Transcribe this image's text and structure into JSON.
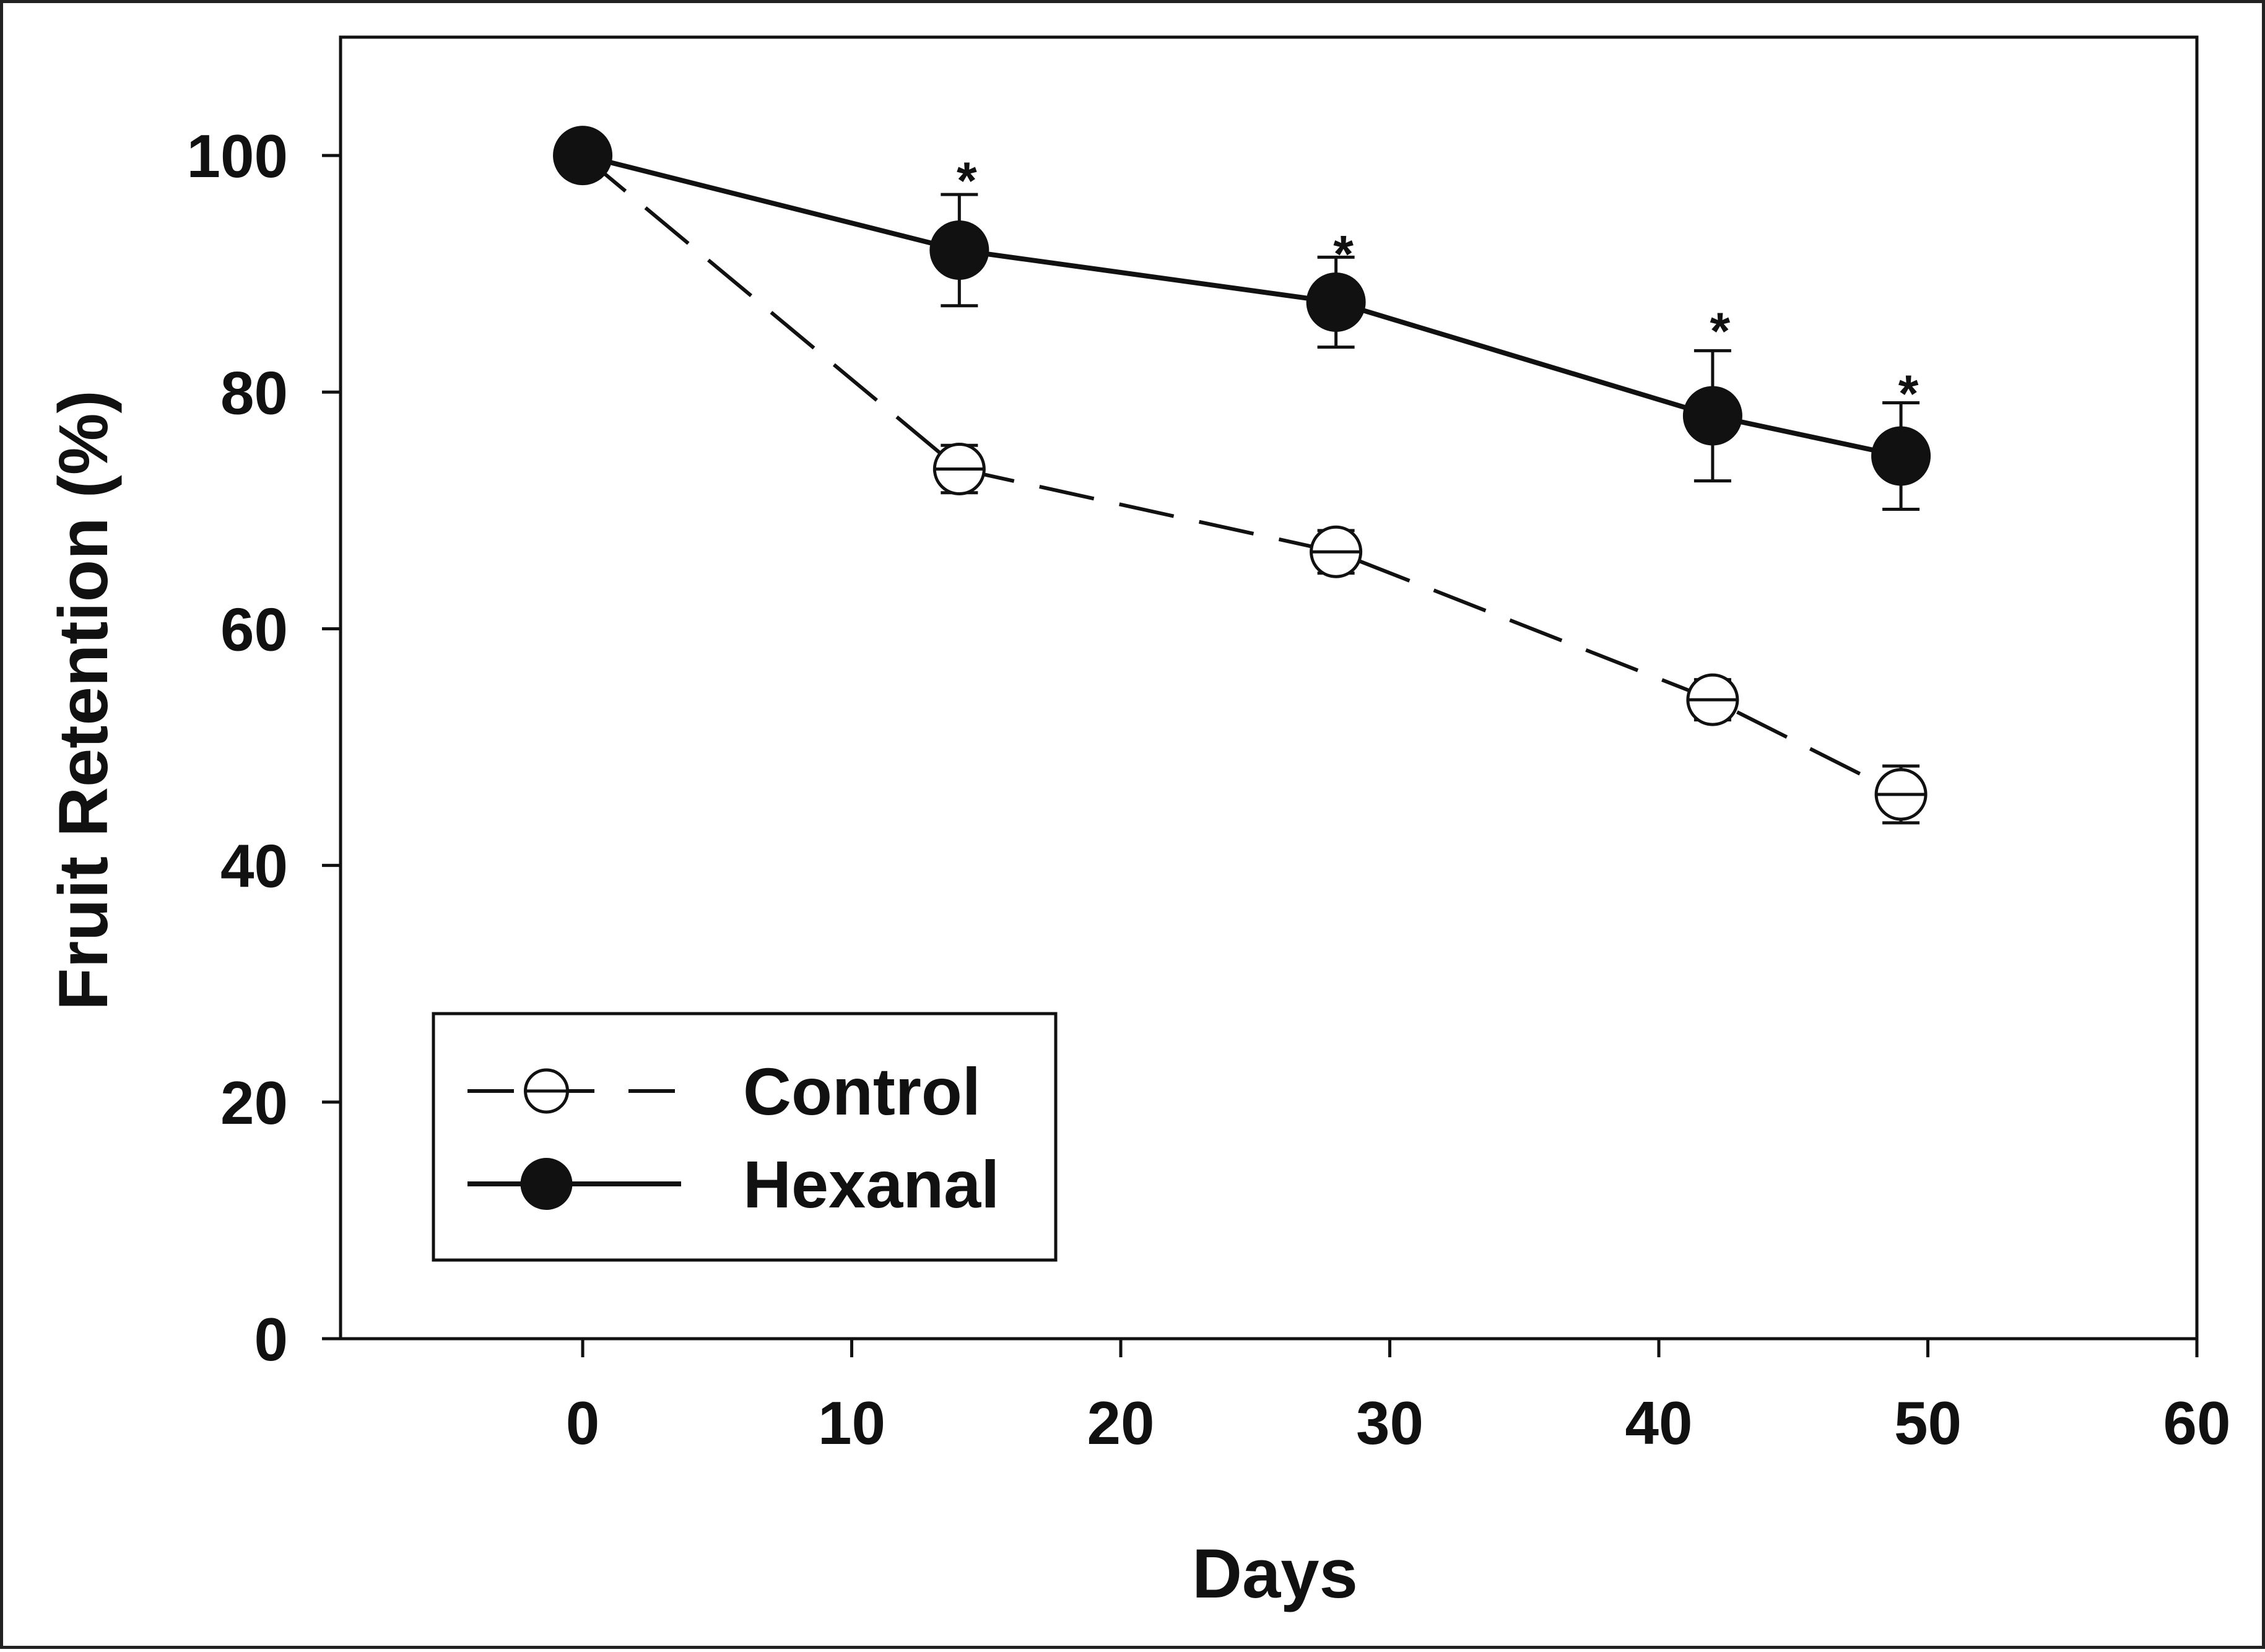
{
  "chart_data": {
    "type": "line",
    "title": "",
    "xlabel": "Days",
    "ylabel": "Fruit Retention (%)",
    "xlim": [
      -9,
      60
    ],
    "ylim": [
      0,
      110
    ],
    "xticks": [
      0,
      10,
      20,
      30,
      40,
      50,
      60
    ],
    "yticks": [
      0,
      20,
      40,
      60,
      80,
      100
    ],
    "x_tick_labels": [
      "0",
      "10",
      "20",
      "30",
      "40",
      "50",
      "60"
    ],
    "y_tick_labels": [
      "0",
      "20",
      "40",
      "60",
      "80",
      "100"
    ],
    "grid": false,
    "legend_position": "bottom-left",
    "series": [
      {
        "name": "Control",
        "line_style": "dashed",
        "marker": "open-circle-crossed",
        "x": [
          0,
          14,
          28,
          42,
          49
        ],
        "y": [
          100,
          73.5,
          66.5,
          54,
          46
        ],
        "error": [
          0,
          2,
          1.8,
          1.7,
          2.4
        ]
      },
      {
        "name": "Hexanal",
        "line_style": "solid",
        "marker": "filled-circle",
        "x": [
          0,
          14,
          28,
          42,
          49
        ],
        "y": [
          100,
          92,
          87.6,
          78,
          74.6
        ],
        "error": [
          0,
          4.7,
          3.8,
          5.5,
          4.5
        ]
      }
    ],
    "annotations": [
      {
        "text": "*",
        "x": 14,
        "y": 99.5
      },
      {
        "text": "*",
        "x": 28,
        "y": 93.3
      },
      {
        "text": "*",
        "x": 42,
        "y": 86.8
      },
      {
        "text": "*",
        "x": 49,
        "y": 81.5
      }
    ],
    "colors": {
      "line": "#111111",
      "frame": "#222222",
      "background": "#ffffff"
    }
  }
}
